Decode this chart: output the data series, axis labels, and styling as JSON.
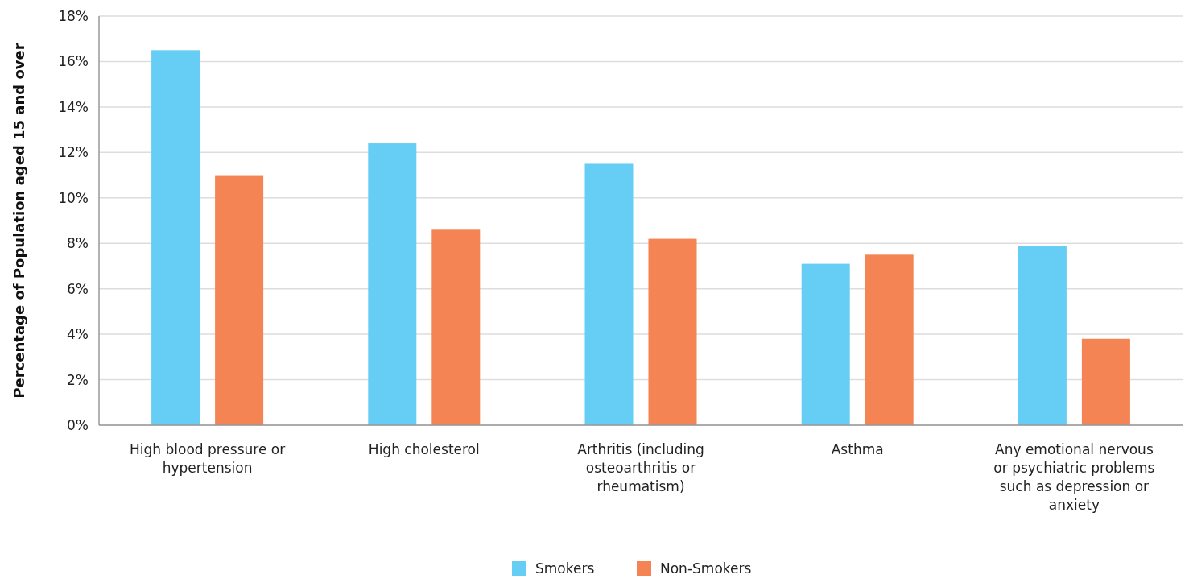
{
  "chart_data": {
    "type": "bar",
    "ylabel": "Percentage of Population aged 15 and over",
    "categories": [
      "High blood pressure or hypertension",
      "High cholesterol",
      "Arthritis (including osteoarthritis or rheumatism)",
      "Asthma",
      "Any emotional nervous or psychiatric problems such as depression or anxiety"
    ],
    "series": [
      {
        "name": "Smokers",
        "color": "#66cef5",
        "values": [
          16.5,
          12.4,
          11.5,
          7.1,
          7.9
        ]
      },
      {
        "name": "Non-Smokers",
        "color": "#f58454",
        "values": [
          11.0,
          8.6,
          8.2,
          7.5,
          3.8
        ]
      }
    ],
    "ylim": [
      0,
      18
    ],
    "yticks": [
      {
        "value": 0,
        "label": "0%"
      },
      {
        "value": 2,
        "label": "2%"
      },
      {
        "value": 4,
        "label": "4%"
      },
      {
        "value": 6,
        "label": "6%"
      },
      {
        "value": 8,
        "label": "8%"
      },
      {
        "value": 10,
        "label": "10%"
      },
      {
        "value": 12,
        "label": "12%"
      },
      {
        "value": 14,
        "label": "14%"
      },
      {
        "value": 16,
        "label": "16%"
      },
      {
        "value": 18,
        "label": "18%"
      }
    ],
    "grid": "y",
    "legend": "bottom"
  }
}
